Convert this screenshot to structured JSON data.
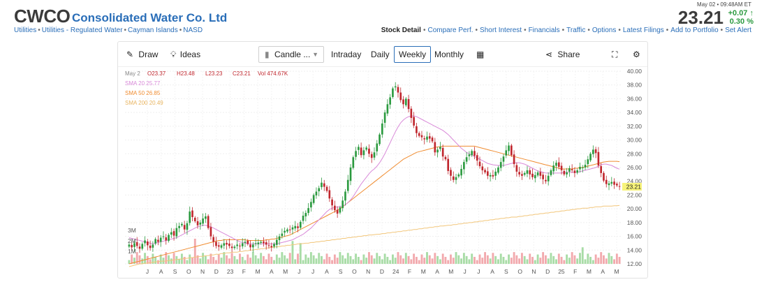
{
  "header": {
    "ticker": "CWCO",
    "company": "Consolidated Water Co. Ltd",
    "breadcrumbs": [
      "Utilities",
      "Utilities - Regulated Water",
      "Cayman Islands",
      "NASD"
    ],
    "quote_time": "May 02 • 09:48AM ET",
    "price": "23.21",
    "change": "+0.07",
    "change_pct": "0.30 %",
    "links": [
      "Stock Detail",
      "Compare Perf.",
      "Short Interest",
      "Financials",
      "Traffic",
      "Options",
      "Latest Filings",
      "Add to Portfolio",
      "Set Alert"
    ],
    "up_color": "#2b9a3f",
    "link_color": "#2a6eb8"
  },
  "toolbar": {
    "draw": "Draw",
    "ideas": "Ideas",
    "chart_type": "Candle ...",
    "intraday": "Intraday",
    "daily": "Daily",
    "weekly": "Weekly",
    "monthly": "Monthly",
    "share": "Share",
    "icons": [
      "pencil-icon",
      "lightbulb-icon",
      "candle-icon",
      "calendar-icon",
      "share-icon",
      "fullscreen-icon",
      "gear-icon"
    ]
  },
  "chart_data": {
    "type": "candlestick",
    "interval": "weekly",
    "legend": {
      "date": "May 2",
      "open": "O23.37",
      "high": "H23.48",
      "low": "L23.23",
      "close": "C23.21",
      "volume": "Vol 474.67K",
      "sma20": "SMA 20",
      "sma20_val": "25.77",
      "sma50": "SMA 50",
      "sma50_val": "26.85",
      "sma200": "SMA 200",
      "sma200_val": "20.49"
    },
    "y_ticks": [
      "40.00",
      "38.00",
      "36.00",
      "34.00",
      "32.00",
      "30.00",
      "28.00",
      "26.00",
      "24.00",
      "22.00",
      "20.00",
      "18.00",
      "16.00",
      "14.00",
      "12.00"
    ],
    "ylim": [
      12,
      40
    ],
    "volume_ticks": [
      "3M",
      "2M",
      "1M"
    ],
    "last_price_label": "23.21",
    "x_labels": [
      "J",
      "A",
      "S",
      "O",
      "N",
      "D",
      "23",
      "F",
      "M",
      "A",
      "M",
      "J",
      "J",
      "A",
      "S",
      "O",
      "N",
      "D",
      "24",
      "F",
      "M",
      "A",
      "M",
      "J",
      "J",
      "A",
      "S",
      "O",
      "N",
      "D",
      "25",
      "F",
      "M",
      "A",
      "M"
    ],
    "close": [
      14.8,
      14.4,
      15.0,
      14.6,
      14.2,
      14.9,
      15.4,
      14.7,
      14.3,
      14.8,
      15.6,
      15.2,
      15.8,
      16.0,
      15.4,
      16.2,
      16.6,
      16.1,
      17.2,
      17.5,
      17.8,
      17.0,
      17.9,
      19.6,
      18.8,
      18.2,
      17.6,
      18.0,
      18.6,
      18.9,
      17.2,
      16.0,
      15.2,
      14.6,
      14.5,
      14.7,
      15.0,
      14.8,
      14.6,
      14.3,
      14.5,
      14.8,
      14.6,
      15.0,
      15.2,
      14.9,
      14.4,
      14.8,
      15.0,
      15.1,
      15.2,
      15.0,
      14.8,
      14.6,
      14.4,
      14.9,
      15.5,
      16.0,
      16.4,
      16.8,
      17.0,
      16.9,
      17.3,
      17.5,
      17.2,
      18.1,
      19.0,
      19.4,
      20.1,
      21.0,
      22.0,
      22.5,
      23.0,
      23.8,
      23.2,
      22.6,
      21.5,
      20.5,
      19.8,
      19.3,
      20.2,
      21.2,
      22.5,
      24.2,
      26.0,
      27.5,
      28.4,
      29.0,
      27.8,
      28.5,
      28.9,
      28.0,
      27.4,
      28.2,
      29.5,
      30.8,
      32.4,
      34.0,
      35.2,
      36.2,
      37.5,
      37.8,
      36.9,
      35.8,
      35.2,
      36.0,
      34.5,
      33.2,
      32.1,
      31.0,
      30.6,
      30.4,
      30.1,
      30.5,
      30.2,
      29.8,
      28.2,
      28.6,
      29.0,
      27.6,
      27.2,
      25.5,
      24.8,
      24.2,
      24.6,
      25.0,
      25.8,
      26.8,
      27.5,
      27.9,
      28.4,
      27.7,
      27.0,
      26.2,
      25.6,
      25.3,
      24.8,
      24.9,
      24.7,
      25.4,
      26.0,
      26.8,
      27.6,
      28.5,
      29.2,
      27.8,
      26.5,
      25.4,
      25.0,
      24.8,
      25.2,
      25.6,
      25.0,
      24.6,
      24.9,
      25.3,
      24.8,
      24.3,
      24.0,
      24.8,
      25.6,
      26.3,
      26.7,
      26.1,
      25.6,
      25.0,
      25.3,
      25.9,
      25.6,
      25.2,
      25.6,
      26.1,
      26.0,
      26.4,
      27.2,
      28.0,
      28.6,
      28.1,
      26.3,
      25.2,
      24.1,
      23.6,
      23.7,
      23.9,
      23.5,
      23.4,
      23.21
    ],
    "sma20": [
      15.8,
      15.7,
      15.6,
      15.5,
      15.4,
      15.3,
      15.2,
      15.1,
      15.0,
      14.9,
      15.0,
      15.1,
      15.2,
      15.3,
      15.4,
      15.5,
      15.6,
      15.7,
      15.8,
      16.0,
      16.2,
      16.4,
      16.6,
      16.8,
      17.0,
      17.2,
      17.4,
      17.5,
      17.6,
      17.6,
      17.5,
      17.4,
      17.2,
      17.0,
      16.8,
      16.6,
      16.4,
      16.2,
      16.0,
      15.8,
      15.6,
      15.4,
      15.2,
      15.1,
      15.0,
      14.9,
      14.9,
      14.9,
      14.9,
      14.9,
      14.9,
      14.9,
      14.9,
      14.9,
      14.9,
      14.9,
      15.0,
      15.1,
      15.2,
      15.3,
      15.4,
      15.5,
      15.7,
      15.9,
      16.1,
      16.3,
      16.6,
      16.9,
      17.2,
      17.6,
      18.0,
      18.4,
      18.8,
      19.2,
      19.6,
      19.9,
      20.1,
      20.2,
      20.3,
      20.3,
      20.4,
      20.6,
      20.9,
      21.3,
      21.8,
      22.4,
      23.0,
      23.6,
      24.1,
      24.6,
      25.1,
      25.5,
      25.8,
      26.2,
      26.7,
      27.3,
      28.0,
      28.8,
      29.6,
      30.4,
      31.2,
      31.9,
      32.5,
      32.9,
      33.2,
      33.4,
      33.5,
      33.5,
      33.4,
      33.2,
      33.0,
      32.8,
      32.6,
      32.4,
      32.2,
      32.0,
      31.8,
      31.6,
      31.4,
      31.1,
      30.8,
      30.4,
      30.0,
      29.6,
      29.2,
      28.8,
      28.5,
      28.2,
      28.0,
      27.8,
      27.6,
      27.4,
      27.2,
      27.0,
      26.8,
      26.6,
      26.5,
      26.4,
      26.3,
      26.3,
      26.3,
      26.4,
      26.5,
      26.6,
      26.7,
      26.7,
      26.7,
      26.6,
      26.5,
      26.3,
      26.1,
      25.9,
      25.7,
      25.5,
      25.4,
      25.3,
      25.2,
      25.2,
      25.2,
      25.2,
      25.2,
      25.2,
      25.2,
      25.3,
      25.3,
      25.3,
      25.3,
      25.3,
      25.3,
      25.4,
      25.5,
      25.6,
      25.7,
      25.8,
      25.9,
      26.0,
      26.2,
      26.4,
      26.5,
      26.5,
      26.4,
      26.3,
      26.1,
      25.9,
      25.77
    ],
    "sma50": [
      12.0,
      12.1,
      12.2,
      12.3,
      12.4,
      12.5,
      12.6,
      12.7,
      12.8,
      12.9,
      13.0,
      13.1,
      13.2,
      13.3,
      13.4,
      13.5,
      13.6,
      13.7,
      13.8,
      13.9,
      14.0,
      14.1,
      14.2,
      14.3,
      14.4,
      14.5,
      14.6,
      14.7,
      14.8,
      14.9,
      15.0,
      15.1,
      15.2,
      15.3,
      15.4,
      15.4,
      15.5,
      15.5,
      15.5,
      15.5,
      15.5,
      15.5,
      15.5,
      15.5,
      15.5,
      15.4,
      15.4,
      15.4,
      15.4,
      15.4,
      15.4,
      15.4,
      15.5,
      15.5,
      15.6,
      15.6,
      15.7,
      15.8,
      15.9,
      16.0,
      16.1,
      16.2,
      16.4,
      16.6,
      16.8,
      17.0,
      17.2,
      17.4,
      17.6,
      17.8,
      18.0,
      18.2,
      18.4,
      18.6,
      18.8,
      19.0,
      19.2,
      19.4,
      19.6,
      19.8,
      20.0,
      20.3,
      20.6,
      20.9,
      21.2,
      21.5,
      21.8,
      22.1,
      22.4,
      22.7,
      23.0,
      23.3,
      23.6,
      23.9,
      24.2,
      24.5,
      24.8,
      25.1,
      25.4,
      25.7,
      26.0,
      26.3,
      26.6,
      26.9,
      27.2,
      27.4,
      27.6,
      27.8,
      28.0,
      28.2,
      28.3,
      28.4,
      28.5,
      28.6,
      28.7,
      28.8,
      28.9,
      29.0,
      29.0,
      29.1,
      29.1,
      29.1,
      29.1,
      29.1,
      29.1,
      29.1,
      29.1,
      29.1,
      29.1,
      29.1,
      29.1,
      29.1,
      29.0,
      28.9,
      28.8,
      28.7,
      28.6,
      28.5,
      28.4,
      28.3,
      28.2,
      28.1,
      28.0,
      27.9,
      27.8,
      27.7,
      27.6,
      27.5,
      27.4,
      27.3,
      27.2,
      27.1,
      27.0,
      26.9,
      26.8,
      26.7,
      26.6,
      26.5,
      26.4,
      26.3,
      26.2,
      26.1,
      26.0,
      25.9,
      25.8,
      25.8,
      25.8,
      25.8,
      25.8,
      25.9,
      25.9,
      26.0,
      26.0,
      26.1,
      26.2,
      26.3,
      26.4,
      26.5,
      26.6,
      26.7,
      26.8,
      26.85,
      26.9,
      26.9,
      26.9,
      26.9,
      26.85
    ],
    "sma200": [
      11.6,
      11.7,
      11.8,
      11.9,
      12.0,
      12.0,
      12.1,
      12.1,
      12.2,
      12.2,
      12.3,
      12.3,
      12.4,
      12.4,
      12.5,
      12.5,
      12.6,
      12.6,
      12.7,
      12.7,
      12.8,
      12.8,
      12.9,
      12.9,
      13.0,
      13.0,
      13.1,
      13.1,
      13.2,
      13.2,
      13.3,
      13.3,
      13.4,
      13.4,
      13.5,
      13.5,
      13.6,
      13.6,
      13.7,
      13.7,
      13.8,
      13.8,
      13.9,
      13.9,
      14.0,
      14.0,
      14.1,
      14.1,
      14.2,
      14.2,
      14.3,
      14.3,
      14.4,
      14.4,
      14.5,
      14.5,
      14.6,
      14.6,
      14.7,
      14.7,
      14.8,
      14.8,
      14.9,
      14.9,
      15.0,
      15.0,
      15.1,
      15.1,
      15.2,
      15.2,
      15.3,
      15.3,
      15.4,
      15.4,
      15.5,
      15.5,
      15.6,
      15.6,
      15.7,
      15.7,
      15.8,
      15.8,
      15.9,
      15.9,
      16.0,
      16.0,
      16.1,
      16.1,
      16.2,
      16.2,
      16.3,
      16.3,
      16.4,
      16.4,
      16.5,
      16.5,
      16.6,
      16.6,
      16.7,
      16.7,
      16.8,
      16.8,
      16.9,
      16.9,
      17.0,
      17.0,
      17.1,
      17.1,
      17.2,
      17.2,
      17.3,
      17.3,
      17.4,
      17.4,
      17.5,
      17.5,
      17.6,
      17.6,
      17.7,
      17.7,
      17.8,
      17.8,
      17.9,
      17.9,
      18.0,
      18.0,
      18.1,
      18.1,
      18.2,
      18.2,
      18.3,
      18.3,
      18.4,
      18.4,
      18.5,
      18.5,
      18.6,
      18.6,
      18.7,
      18.7,
      18.8,
      18.8,
      18.9,
      18.9,
      19.0,
      19.0,
      19.1,
      19.1,
      19.2,
      19.2,
      19.3,
      19.3,
      19.4,
      19.4,
      19.5,
      19.5,
      19.6,
      19.6,
      19.7,
      19.7,
      19.8,
      19.8,
      19.9,
      19.9,
      20.0,
      20.0,
      20.1,
      20.1,
      20.2,
      20.2,
      20.3,
      20.3,
      20.3,
      20.4,
      20.4,
      20.4,
      20.4,
      20.45,
      20.45,
      20.49
    ],
    "colors": {
      "up": "#2b9a3f",
      "down": "#c0262d",
      "up_vol": "#a8dca6",
      "down_vol": "#f2a9ad",
      "sma20": "#d98ad9",
      "sma50": "#f08c30",
      "sma200": "#f2c67a",
      "last_price_bg": "#f7f37a"
    }
  }
}
